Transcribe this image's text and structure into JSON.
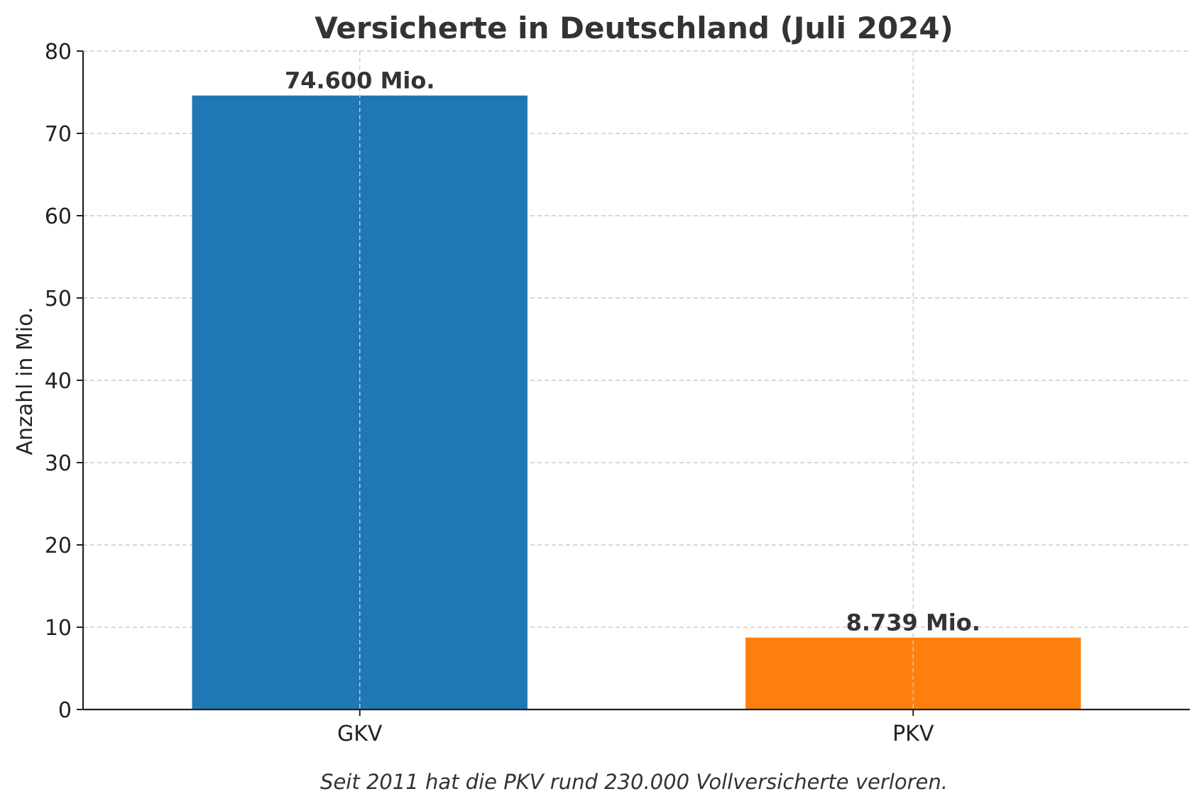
{
  "chart_data": {
    "type": "bar",
    "title": "Versicherte in Deutschland (Juli 2024)",
    "xlabel": "",
    "ylabel": "Anzahl in Mio.",
    "categories": [
      "GKV",
      "PKV"
    ],
    "values": [
      74.6,
      8.739
    ],
    "data_labels": [
      "74.600 Mio.",
      "8.739 Mio."
    ],
    "colors": [
      "#1f77b4",
      "#ff7f0e"
    ],
    "ylim": [
      0,
      80
    ],
    "yticks": [
      0,
      10,
      20,
      30,
      40,
      50,
      60,
      70,
      80
    ],
    "grid": true,
    "footnote": "Seit 2011 hat die PKV rund 230.000 Vollversicherte verloren."
  }
}
